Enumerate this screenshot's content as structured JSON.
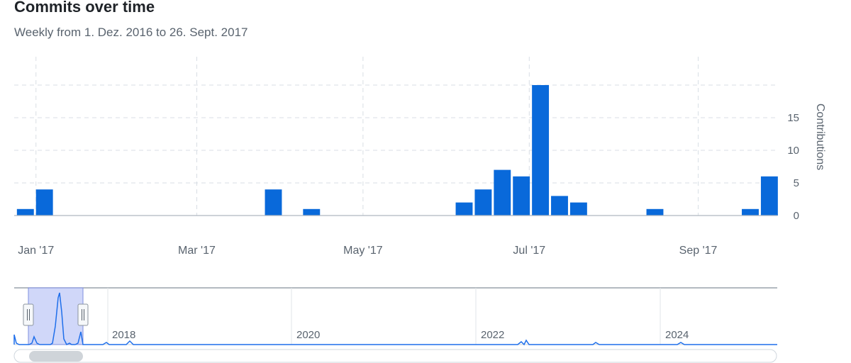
{
  "header": {
    "title": "Commits over time",
    "subtitle": "Weekly from 1. Dez. 2016 to 26. Sept. 2017"
  },
  "colors": {
    "bar": "#0969da",
    "grid": "#d8dee4",
    "axis": "#afb8c1",
    "selection": "#c8d0f8"
  },
  "chart_data": {
    "type": "bar",
    "ylabel": "Contributions",
    "ylim": [
      0,
      20
    ],
    "yticks": [
      0,
      5,
      10,
      15
    ],
    "grid": true,
    "xticks": [
      {
        "label": "Jan '17",
        "date": "2017-01-01"
      },
      {
        "label": "Mar '17",
        "date": "2017-03-01"
      },
      {
        "label": "May '17",
        "date": "2017-05-01"
      },
      {
        "label": "Jul '17",
        "date": "2017-07-01"
      },
      {
        "label": "Sep '17",
        "date": "2017-09-01"
      }
    ],
    "series": [
      {
        "values": [
          {
            "week": "2016-12-25",
            "value": 1
          },
          {
            "week": "2017-01-01",
            "value": 4
          },
          {
            "week": "2017-03-26",
            "value": 4
          },
          {
            "week": "2017-04-09",
            "value": 1
          },
          {
            "week": "2017-06-04",
            "value": 2
          },
          {
            "week": "2017-06-11",
            "value": 4
          },
          {
            "week": "2017-06-18",
            "value": 7
          },
          {
            "week": "2017-06-25",
            "value": 6
          },
          {
            "week": "2017-07-02",
            "value": 20
          },
          {
            "week": "2017-07-09",
            "value": 3
          },
          {
            "week": "2017-07-16",
            "value": 2
          },
          {
            "week": "2017-08-13",
            "value": 1
          },
          {
            "week": "2017-09-17",
            "value": 1
          },
          {
            "week": "2017-09-24",
            "value": 6
          }
        ]
      }
    ]
  },
  "navigator": {
    "labels": [
      "2018",
      "2020",
      "2022",
      "2024"
    ]
  }
}
